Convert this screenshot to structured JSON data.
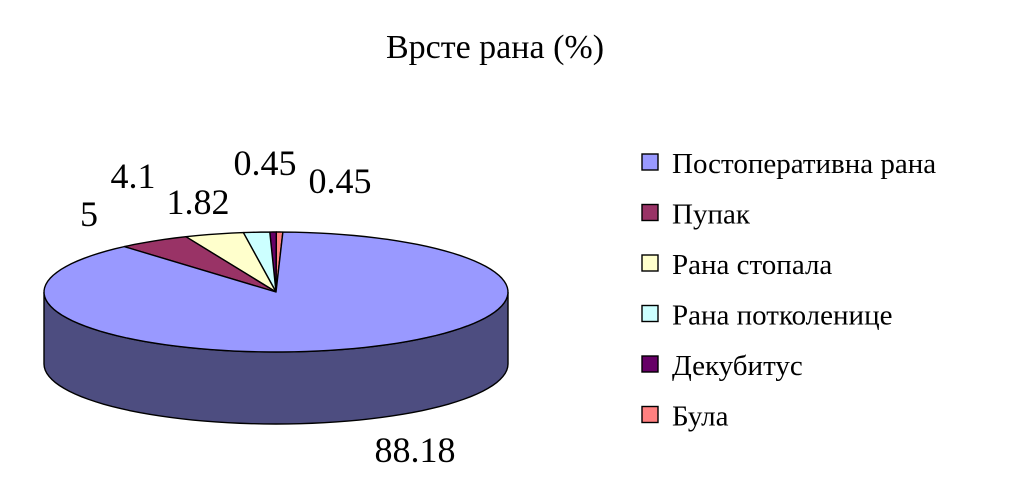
{
  "chart_data": {
    "type": "pie",
    "title": "Врсте рана (%)",
    "categories": [
      "Постоперативна рана",
      "Пупак",
      "Рана стопала",
      "Рана потколенице",
      "Декубитус",
      "Була"
    ],
    "values": [
      88.18,
      5,
      4.1,
      1.82,
      0.45,
      0.45
    ],
    "data_labels": [
      "88.18",
      "5",
      "4.1",
      "1.82",
      "0.45",
      "0.45"
    ],
    "colors": [
      "#9999ff",
      "#993366",
      "#ffffcc",
      "#ccffff",
      "#660066",
      "#ff8080"
    ],
    "style": "3d-pie",
    "legend_position": "right"
  }
}
